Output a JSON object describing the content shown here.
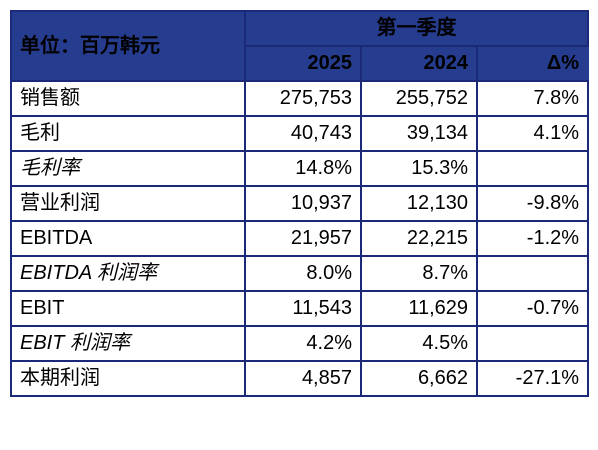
{
  "header": {
    "unit_label": "单位：百万韩元",
    "period_label": "第一季度",
    "col_2025": "2025",
    "col_2024": "2024",
    "col_delta": "Δ%"
  },
  "colors": {
    "header_bg": "#263c8f",
    "border": "#1b2a78"
  },
  "rows": [
    {
      "label": "销售额",
      "v2025": "275,753",
      "v2024": "255,752",
      "delta": "7.8%"
    },
    {
      "label": "毛利",
      "v2025": "40,743",
      "v2024": "39,134",
      "delta": "4.1%"
    },
    {
      "label": "毛利率",
      "v2025": "14.8%",
      "v2024": "15.3%",
      "delta": ""
    },
    {
      "label": "营业利润",
      "v2025": "10,937",
      "v2024": "12,130",
      "delta": "-9.8%"
    },
    {
      "label": "EBITDA",
      "v2025": "21,957",
      "v2024": "22,215",
      "delta": "-1.2%"
    },
    {
      "label": "EBITDA 利润率",
      "v2025": "8.0%",
      "v2024": "8.7%",
      "delta": ""
    },
    {
      "label": "EBIT",
      "v2025": "11,543",
      "v2024": "11,629",
      "delta": "-0.7%"
    },
    {
      "label": "EBIT 利润率",
      "v2025": "4.2%",
      "v2024": "4.5%",
      "delta": ""
    },
    {
      "label": "本期利润",
      "v2025": "4,857",
      "v2024": "6,662",
      "delta": "-27.1%"
    }
  ]
}
